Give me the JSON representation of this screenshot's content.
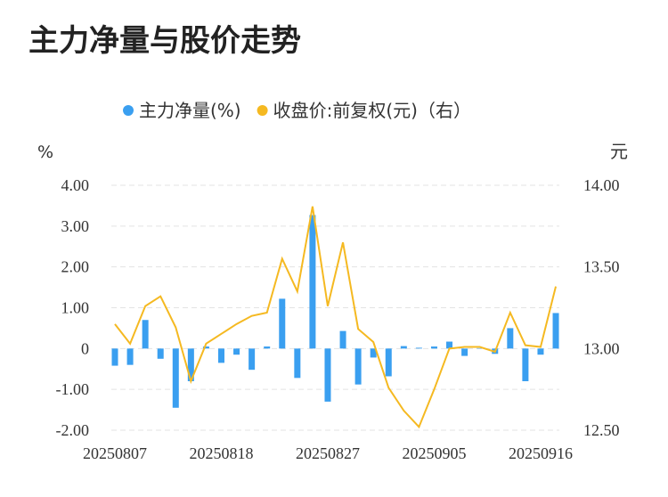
{
  "chart_data": {
    "type": "bar-line",
    "title": "主力净量与股价走势",
    "y_label": "%",
    "y2_label": "元",
    "categories": [
      "20250807",
      null,
      null,
      null,
      null,
      null,
      null,
      "20250818",
      null,
      null,
      null,
      null,
      null,
      null,
      "20250827",
      null,
      null,
      null,
      null,
      null,
      null,
      "20250905",
      null,
      null,
      null,
      null,
      null,
      null,
      "20250916",
      null
    ],
    "series": [
      {
        "name": "主力净量(%)",
        "color": "#3a9ff0",
        "type": "bar",
        "values": [
          -0.42,
          -0.4,
          0.7,
          -0.25,
          -1.45,
          -0.8,
          0.05,
          -0.35,
          -0.15,
          -0.52,
          0.05,
          1.22,
          -0.72,
          3.27,
          -1.3,
          0.43,
          -0.88,
          -0.22,
          -0.68,
          0.06,
          0.02,
          0.05,
          0.17,
          -0.18,
          0.01,
          -0.13,
          0.5,
          -0.8,
          -0.15,
          0.87
        ]
      },
      {
        "name": "收盘价:前复权(元)（右）",
        "color": "#f5b921",
        "type": "line",
        "axis": "y2",
        "values": [
          13.15,
          13.03,
          13.26,
          13.32,
          13.13,
          12.8,
          13.03,
          13.09,
          13.15,
          13.2,
          13.22,
          13.55,
          13.35,
          13.87,
          13.26,
          13.65,
          13.12,
          13.04,
          12.76,
          12.62,
          12.52,
          12.75,
          13.0,
          13.01,
          13.01,
          12.98,
          13.22,
          13.02,
          13.01,
          13.38
        ]
      }
    ],
    "ylim": [
      -2,
      4
    ],
    "yticks": [
      {
        "value": -2,
        "label": "-2.00"
      },
      {
        "value": -1,
        "label": "-1.00"
      },
      0,
      {
        "value": 1,
        "label": "1.00"
      },
      {
        "value": 2,
        "label": "2.00"
      },
      {
        "value": 3,
        "label": "3.00"
      },
      {
        "value": 4,
        "label": "4.00"
      }
    ],
    "y2lim": [
      12.5,
      14
    ],
    "y2ticks": [
      {
        "value": 12.5,
        "label": "12.50"
      },
      {
        "value": 13,
        "label": "13.00"
      },
      {
        "value": 13.5,
        "label": "13.50"
      },
      {
        "value": 14,
        "label": "14.00"
      }
    ],
    "grid": true
  }
}
